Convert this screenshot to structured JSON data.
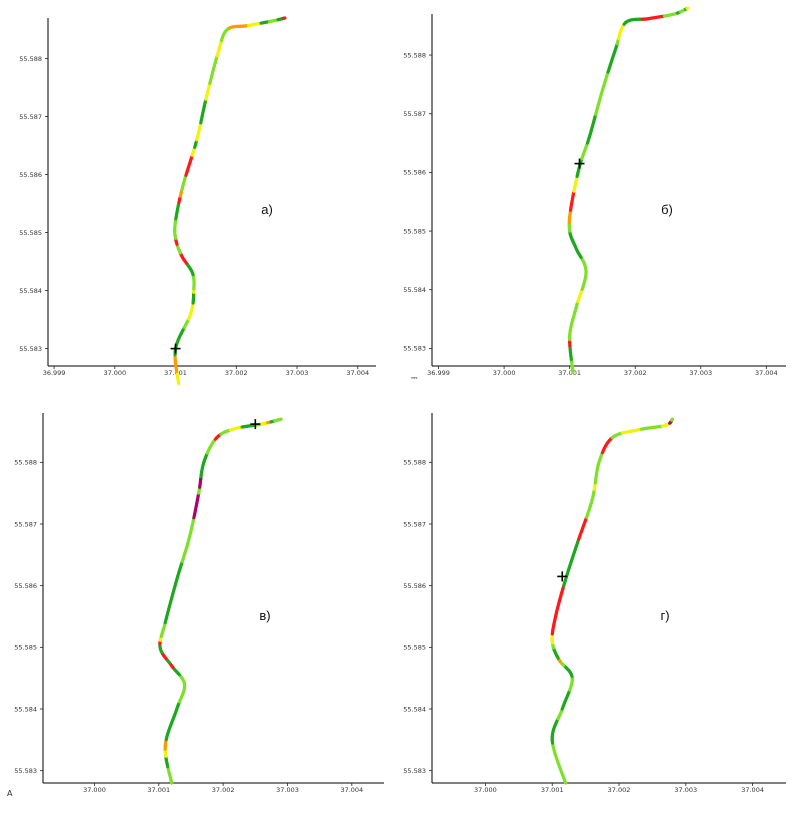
{
  "colors": {
    "axis": "#000000",
    "tick": "#222222",
    "marker": "#000000",
    "speed_scale": [
      "#1fa81f",
      "#7fe02a",
      "#f2f20a",
      "#ff9a00",
      "#ff1a1a",
      "#b0006e"
    ]
  },
  "chart_data": [
    {
      "type": "line",
      "panel_label": "а)",
      "corner_mark": "",
      "x_ticks": [
        "36.999",
        "37.000",
        "37.001",
        "37.002",
        "37.003",
        "37.004"
      ],
      "y_ticks": [
        "55.583",
        "55.584",
        "55.585",
        "55.586",
        "55.587",
        "55.588"
      ],
      "xlim": [
        36.9989,
        37.0043
      ],
      "ylim": [
        55.5827,
        55.5887
      ],
      "marker": {
        "x": 37.001,
        "y": 55.583
      },
      "track": [
        [
          37.00105,
          55.5824
        ],
        [
          37.001,
          55.583
        ],
        [
          37.00125,
          55.5836
        ],
        [
          37.0013,
          55.584
        ],
        [
          37.00128,
          55.5843
        ],
        [
          37.0011,
          55.5846
        ],
        [
          37.001,
          55.5849
        ],
        [
          37.001,
          55.5852
        ],
        [
          37.00112,
          55.5858
        ],
        [
          37.00135,
          55.5866
        ],
        [
          37.0015,
          55.5873
        ],
        [
          37.0017,
          55.5881
        ],
        [
          37.00185,
          55.5885
        ],
        [
          37.0022,
          55.58857
        ],
        [
          37.0026,
          55.58865
        ],
        [
          37.0028,
          55.5887
        ]
      ]
    },
    {
      "type": "line",
      "panel_label": "б)",
      "corner_mark": "⎓",
      "x_ticks": [
        "36.999",
        "37.000",
        "37.001",
        "37.002",
        "37.003",
        "37.004"
      ],
      "y_ticks": [
        "55.583",
        "55.584",
        "55.585",
        "55.586",
        "55.587",
        "55.588"
      ],
      "xlim": [
        36.9989,
        37.0043
      ],
      "ylim": [
        55.5827,
        55.5887
      ],
      "marker": {
        "x": 37.00115,
        "y": 55.58615
      },
      "track": [
        [
          37.00105,
          55.5826
        ],
        [
          37.001,
          55.5832
        ],
        [
          37.0011,
          55.5837
        ],
        [
          37.00125,
          55.5843
        ],
        [
          37.0011,
          55.5847
        ],
        [
          37.001,
          55.585
        ],
        [
          37.00102,
          55.5854
        ],
        [
          37.00115,
          55.5861
        ],
        [
          37.0013,
          55.5866
        ],
        [
          37.0015,
          55.5874
        ],
        [
          37.0017,
          55.5881
        ],
        [
          37.00185,
          55.58855
        ],
        [
          37.0022,
          55.58862
        ],
        [
          37.0026,
          55.5887
        ],
        [
          37.0028,
          55.5888
        ]
      ]
    },
    {
      "type": "line",
      "panel_label": "в)",
      "corner_mark": "A",
      "x_ticks": [
        "37.000",
        "37.001",
        "37.002",
        "37.003",
        "37.004"
      ],
      "y_ticks": [
        "55.583",
        "55.584",
        "55.585",
        "55.586",
        "55.587",
        "55.588"
      ],
      "xlim": [
        36.9992,
        37.0045
      ],
      "ylim": [
        55.5828,
        55.5888
      ],
      "marker": {
        "x": 37.0025,
        "y": 55.58862
      },
      "track": [
        [
          37.0012,
          55.5828
        ],
        [
          37.0011,
          55.5834
        ],
        [
          37.00128,
          55.584
        ],
        [
          37.0014,
          55.5844
        ],
        [
          37.0012,
          55.5847
        ],
        [
          37.00102,
          55.585
        ],
        [
          37.0011,
          55.5854
        ],
        [
          37.00128,
          55.5861
        ],
        [
          37.00148,
          55.5868
        ],
        [
          37.00162,
          55.5875
        ],
        [
          37.0017,
          55.588
        ],
        [
          37.0019,
          55.5884
        ],
        [
          37.0022,
          55.58855
        ],
        [
          37.0026,
          55.58862
        ],
        [
          37.0029,
          55.5887
        ]
      ]
    },
    {
      "type": "line",
      "panel_label": "г)",
      "corner_mark": "",
      "x_ticks": [
        "37.000",
        "37.001",
        "37.002",
        "37.003",
        "37.004"
      ],
      "y_ticks": [
        "55.583",
        "55.584",
        "55.585",
        "55.586",
        "55.587",
        "55.588"
      ],
      "xlim": [
        36.9992,
        37.0045
      ],
      "ylim": [
        55.5828,
        55.5888
      ],
      "marker": {
        "x": 37.00115,
        "y": 55.58615
      },
      "track": [
        [
          37.0012,
          55.5828
        ],
        [
          37.001,
          55.5835
        ],
        [
          37.00115,
          55.584
        ],
        [
          37.0013,
          55.5845
        ],
        [
          37.0011,
          55.5848
        ],
        [
          37.001,
          55.5851
        ],
        [
          37.00105,
          55.5855
        ],
        [
          37.0012,
          55.5861
        ],
        [
          37.00138,
          55.5867
        ],
        [
          37.0016,
          55.5874
        ],
        [
          37.0017,
          55.588
        ],
        [
          37.0019,
          55.5884
        ],
        [
          37.0023,
          55.58853
        ],
        [
          37.0027,
          55.5886
        ],
        [
          37.0028,
          55.5887
        ]
      ]
    }
  ]
}
